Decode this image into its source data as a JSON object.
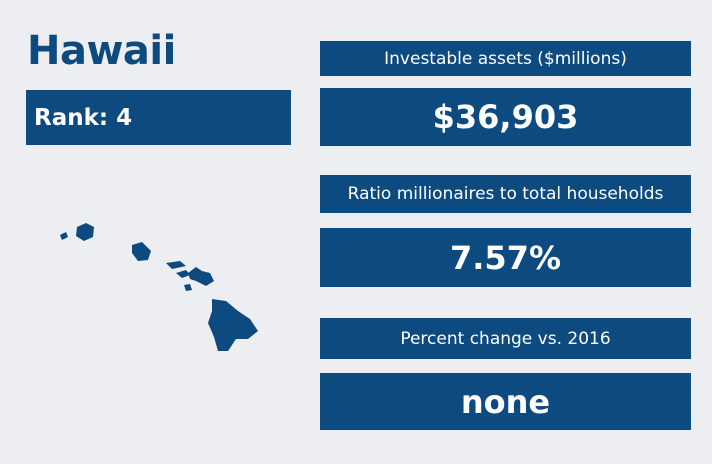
{
  "title": "Hawaii",
  "rank": "Rank: 4",
  "stats": [
    {
      "label": "Investable assets ($millions)",
      "value": "$36,903"
    },
    {
      "label": "Ratio millionaires to total households",
      "value": "7.57%"
    },
    {
      "label": "Percent change vs. 2016",
      "value": "none"
    }
  ]
}
